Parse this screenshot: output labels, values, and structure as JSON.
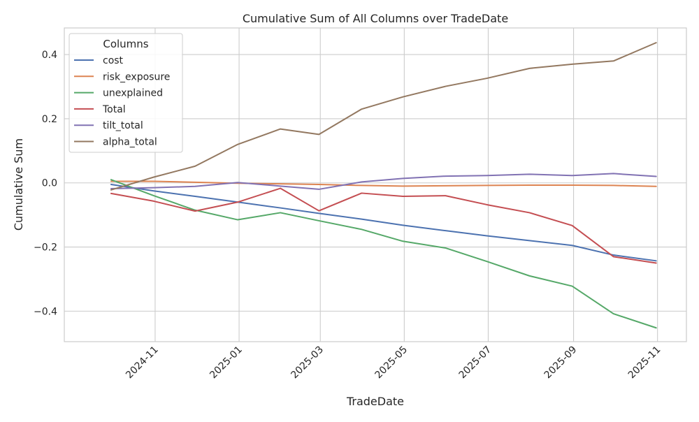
{
  "chart_data": {
    "type": "line",
    "title": "Cumulative Sum of All Columns over TradeDate",
    "xlabel": "TradeDate",
    "ylabel": "Cumulative Sum",
    "x": [
      "2024-09-30",
      "2024-10-31",
      "2024-11-30",
      "2024-12-31",
      "2025-01-31",
      "2025-02-28",
      "2025-03-31",
      "2025-04-30",
      "2025-05-31",
      "2025-06-30",
      "2025-07-31",
      "2025-08-31",
      "2025-09-30",
      "2025-10-31"
    ],
    "xticks": [
      "2024-11",
      "2025-01",
      "2025-03",
      "2025-05",
      "2025-07",
      "2025-09",
      "2025-11"
    ],
    "xlim": [
      "2024-08-27",
      "2025-11-22"
    ],
    "yticks": [
      "−0.4",
      "−0.2",
      "0.0",
      "0.2",
      "0.4"
    ],
    "ytick_values": [
      -0.4,
      -0.2,
      0.0,
      0.2,
      0.4
    ],
    "ylim": [
      -0.495,
      0.483
    ],
    "grid": true,
    "legend_title": "Columns",
    "legend_position": "top-left",
    "series": [
      {
        "name": "cost",
        "color": "#4c72b0",
        "values": [
          -0.005,
          -0.025,
          -0.042,
          -0.06,
          -0.078,
          -0.095,
          -0.113,
          -0.132,
          -0.149,
          -0.165,
          -0.18,
          -0.195,
          -0.225,
          -0.243
        ]
      },
      {
        "name": "risk_exposure",
        "color": "#dd8452",
        "values": [
          0.005,
          0.005,
          0.002,
          -0.001,
          -0.003,
          -0.005,
          -0.008,
          -0.01,
          -0.009,
          -0.008,
          -0.007,
          -0.007,
          -0.008,
          -0.011
        ]
      },
      {
        "name": "unexplained",
        "color": "#55a868",
        "values": [
          0.01,
          -0.04,
          -0.085,
          -0.115,
          -0.093,
          -0.118,
          -0.145,
          -0.182,
          -0.203,
          -0.245,
          -0.29,
          -0.322,
          -0.408,
          -0.452
        ]
      },
      {
        "name": "Total",
        "color": "#c44e52",
        "values": [
          -0.033,
          -0.057,
          -0.088,
          -0.06,
          -0.017,
          -0.087,
          -0.032,
          -0.042,
          -0.04,
          -0.068,
          -0.093,
          -0.133,
          -0.23,
          -0.25
        ]
      },
      {
        "name": "tilt_total",
        "color": "#8172b3",
        "values": [
          -0.018,
          -0.015,
          -0.011,
          0.001,
          -0.01,
          -0.02,
          0.003,
          0.014,
          0.021,
          0.023,
          0.027,
          0.023,
          0.029,
          0.02
        ]
      },
      {
        "name": "alpha_total",
        "color": "#937860",
        "values": [
          -0.022,
          0.018,
          0.052,
          0.12,
          0.168,
          0.151,
          0.23,
          0.268,
          0.301,
          0.326,
          0.357,
          0.37,
          0.38,
          0.437
        ]
      }
    ]
  }
}
